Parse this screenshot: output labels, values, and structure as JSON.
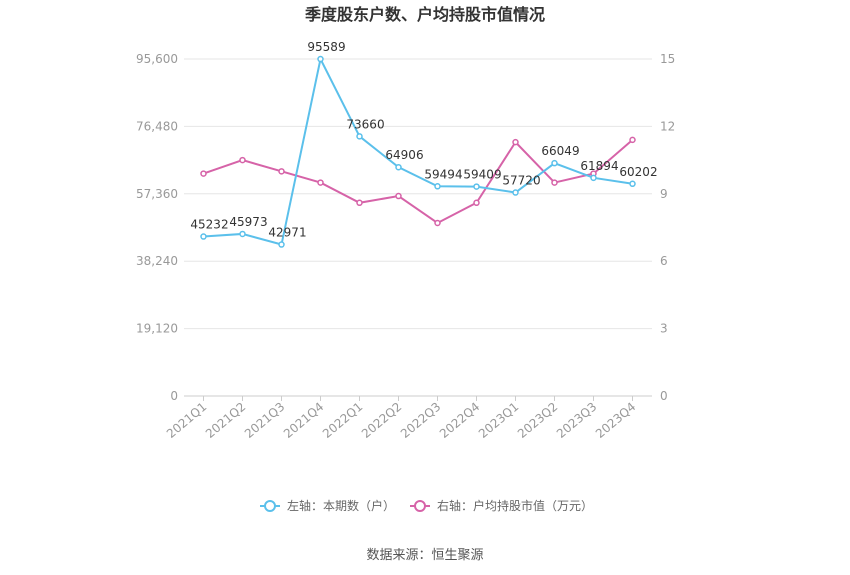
{
  "chart_data": {
    "type": "line",
    "title": "季度股东户数、户均持股市值情况",
    "categories": [
      "2021Q1",
      "2021Q2",
      "2021Q3",
      "2021Q4",
      "2022Q1",
      "2022Q2",
      "2022Q3",
      "2022Q4",
      "2023Q1",
      "2023Q2",
      "2023Q3",
      "2023Q4"
    ],
    "series": [
      {
        "name": "左轴：本期数（户）",
        "axis": "left",
        "color": "#5bc0eb",
        "values": [
          45232,
          45973,
          42971,
          95589,
          73660,
          64906,
          59494,
          59409,
          57720,
          66049,
          61894,
          60202
        ],
        "data_labels": [
          "45232",
          "45973",
          "42971",
          "95589",
          "73660",
          "64906",
          "59494",
          "59409",
          "57720",
          "66049",
          "61894",
          "60202"
        ]
      },
      {
        "name": "右轴：户均持股市值（万元）",
        "axis": "right",
        "color": "#d663a8",
        "values": [
          9.9,
          10.5,
          10.0,
          9.5,
          8.6,
          8.9,
          7.7,
          8.6,
          11.3,
          9.5,
          9.9,
          11.4
        ]
      }
    ],
    "left_axis": {
      "min": 0,
      "max": 95600,
      "ticks": [
        "0",
        "19,120",
        "38,240",
        "57,360",
        "76,480",
        "95,600"
      ],
      "tick_values": [
        0,
        19120,
        38240,
        57360,
        76480,
        95600
      ]
    },
    "right_axis": {
      "min": 0,
      "max": 15,
      "ticks": [
        "0",
        "3",
        "6",
        "9",
        "12",
        "15"
      ],
      "tick_values": [
        0,
        3,
        6,
        9,
        12,
        15
      ]
    },
    "grid": true,
    "legend_position": "bottom"
  },
  "source": "数据来源：恒生聚源"
}
